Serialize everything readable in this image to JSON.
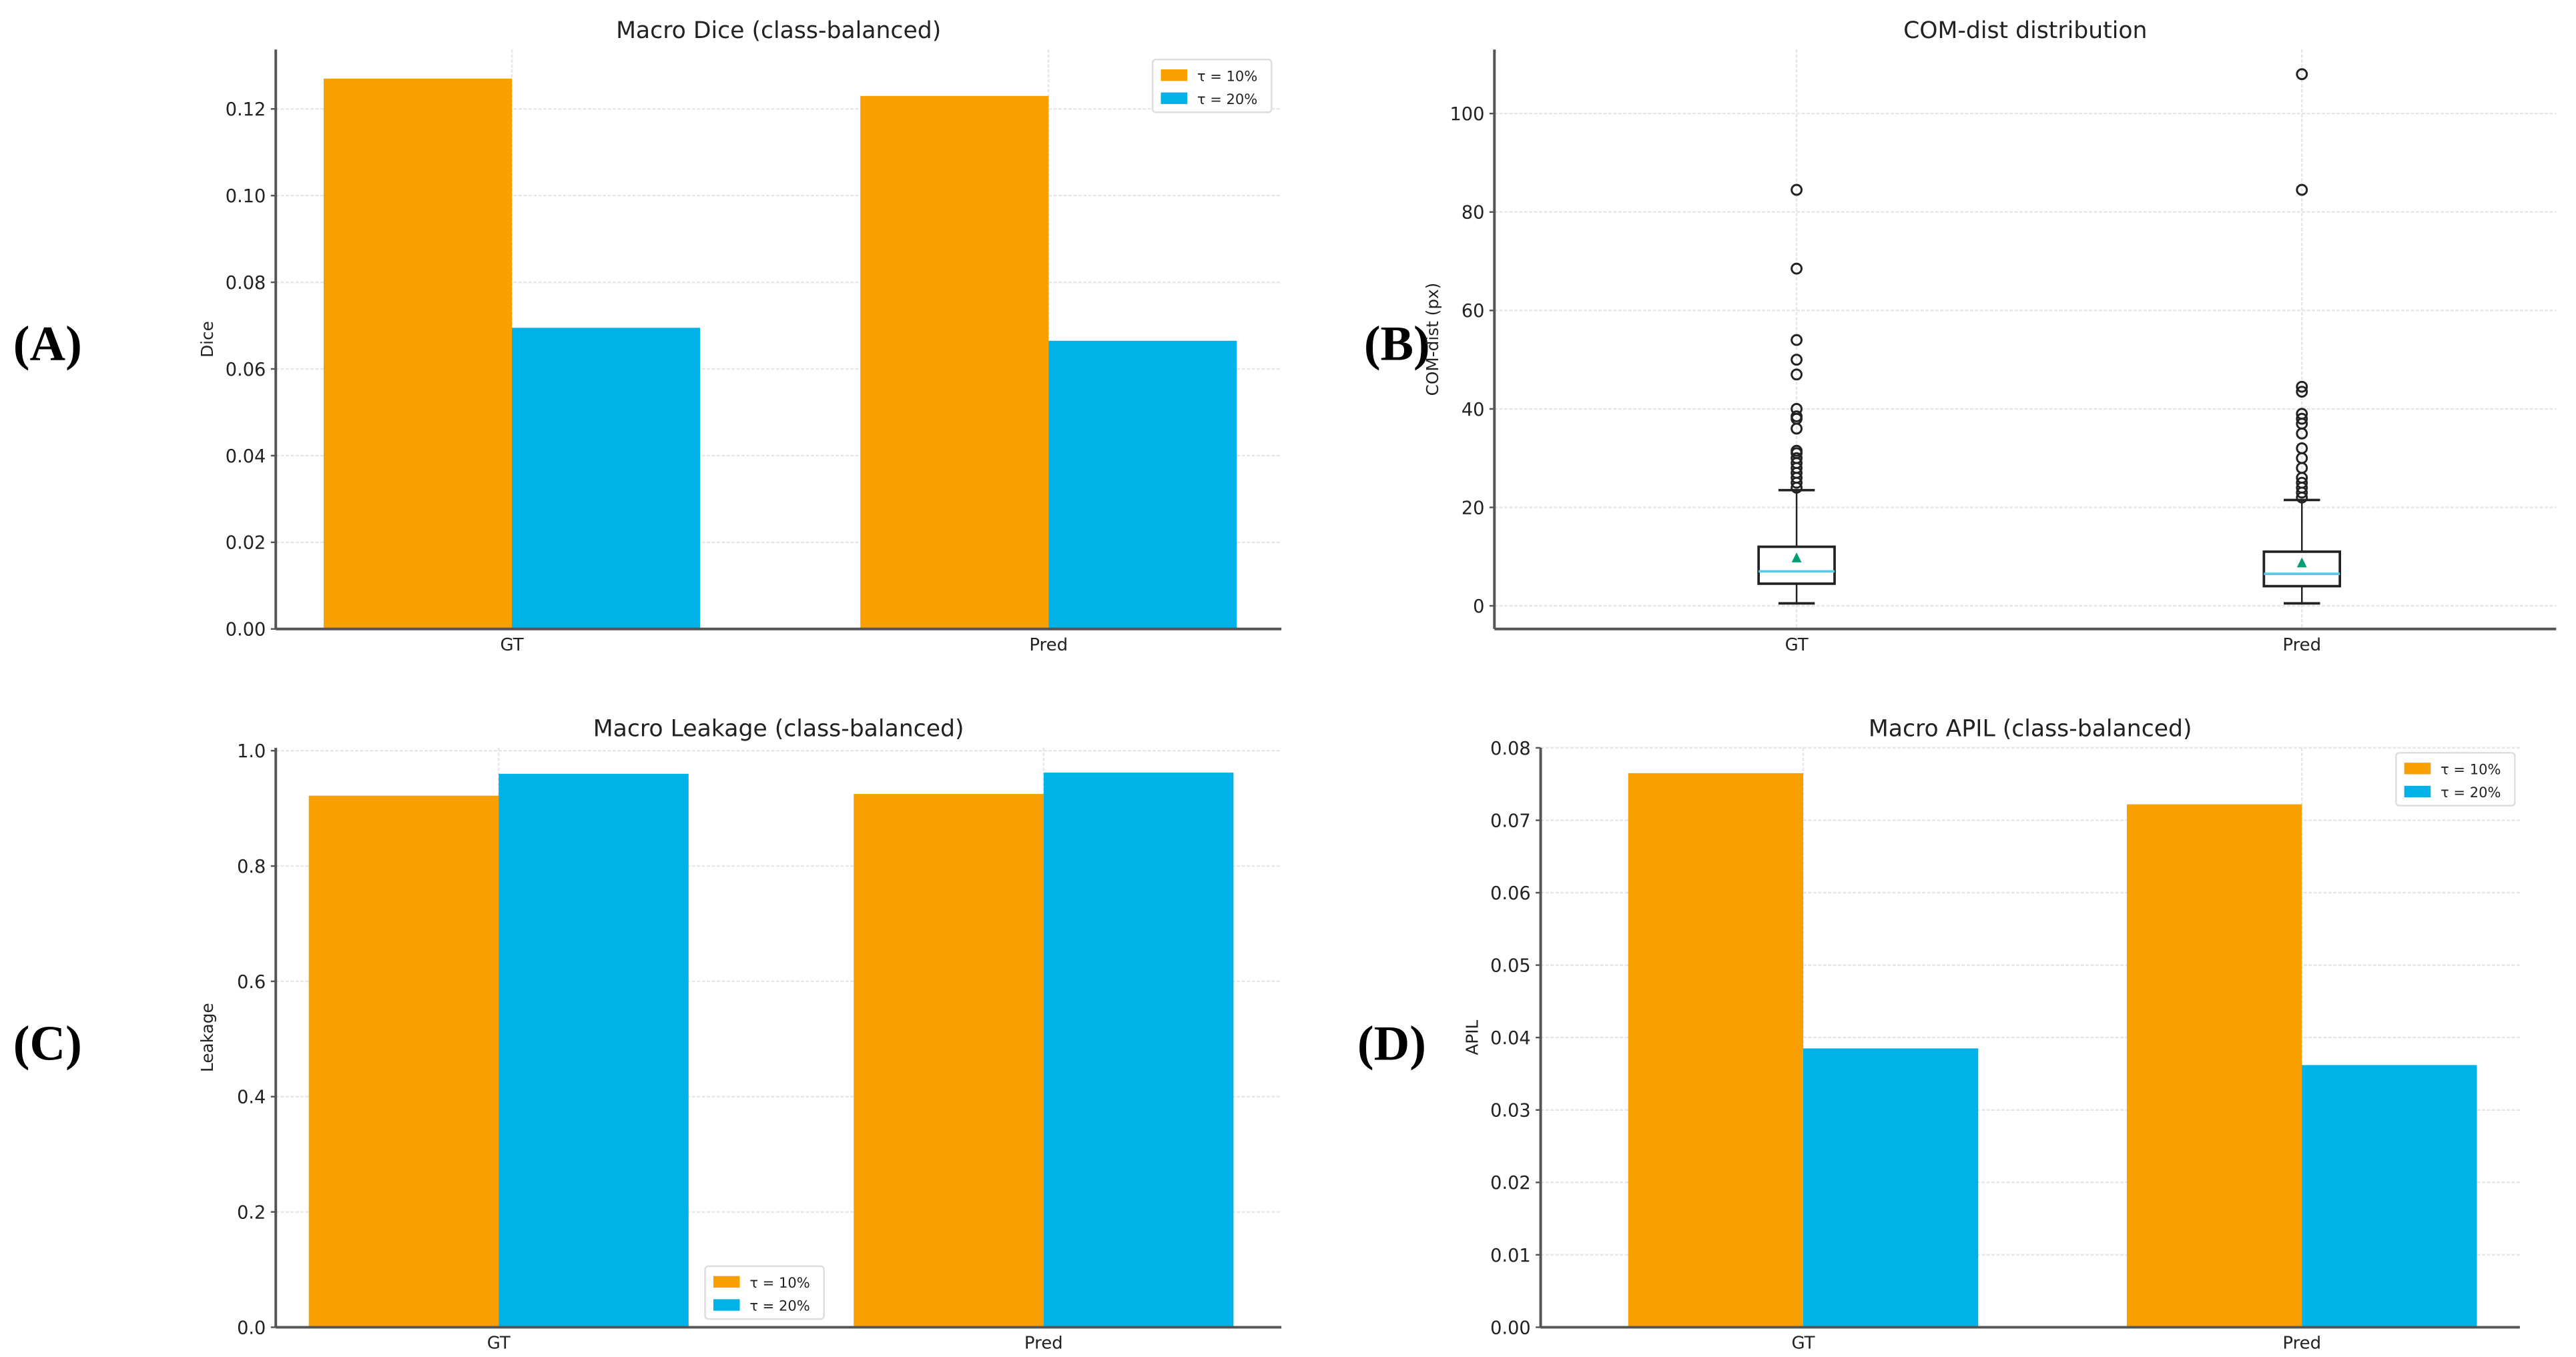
{
  "colors": {
    "tau10": "#f9a000",
    "tau20": "#00b2e8",
    "median": "#5bc8e8",
    "mean": "#009e73"
  },
  "panel_labels": [
    "(A)",
    "(B)",
    "(C)",
    "(D)"
  ],
  "chart_data": [
    {
      "type": "bar",
      "title": "Macro Dice (class-balanced)",
      "xlabel": "",
      "ylabel": "Dice",
      "categories": [
        "GT",
        "Pred"
      ],
      "series": [
        {
          "name": "τ = 10%",
          "values": [
            0.127,
            0.123
          ]
        },
        {
          "name": "τ = 20%",
          "values": [
            0.0695,
            0.0665
          ]
        }
      ],
      "ylim": [
        0,
        0.1337
      ],
      "yticks": [
        "0.00",
        "0.02",
        "0.04",
        "0.06",
        "0.08",
        "0.10",
        "0.12"
      ],
      "grid": true,
      "legend": "top-right"
    },
    {
      "type": "box",
      "title": "COM-dist distribution",
      "xlabel": "",
      "ylabel": "COM-dist (px)",
      "categories": [
        "GT",
        "Pred"
      ],
      "boxes": [
        {
          "whisker_low": 0.5,
          "q1": 4.5,
          "median": 7,
          "q3": 12,
          "whisker_high": 23.5,
          "mean": 9.5,
          "outliers": [
            24,
            25,
            26,
            27,
            28,
            29,
            30,
            31,
            31.5,
            36,
            38,
            38.5,
            40,
            47,
            50,
            54,
            68.5,
            84.5
          ]
        },
        {
          "whisker_low": 0.5,
          "q1": 4,
          "median": 6.5,
          "q3": 11,
          "whisker_high": 21.5,
          "mean": 8.5,
          "outliers": [
            22,
            23,
            24,
            25,
            26,
            28,
            30,
            32,
            35,
            37,
            38,
            39,
            43.5,
            44.5,
            84.5,
            108
          ]
        }
      ],
      "ylim": [
        -4.7,
        113
      ],
      "yticks": [
        "0",
        "20",
        "40",
        "60",
        "80",
        "100"
      ],
      "grid": true
    },
    {
      "type": "bar",
      "title": "Macro Leakage (class-balanced)",
      "xlabel": "",
      "ylabel": "Leakage",
      "categories": [
        "GT",
        "Pred"
      ],
      "series": [
        {
          "name": "τ = 10%",
          "values": [
            0.922,
            0.925
          ]
        },
        {
          "name": "τ = 20%",
          "values": [
            0.96,
            0.962
          ]
        }
      ],
      "ylim": [
        0,
        1.005
      ],
      "yticks": [
        "0.0",
        "0.2",
        "0.4",
        "0.6",
        "0.8",
        "1.0"
      ],
      "grid": true,
      "legend": "bottom-center"
    },
    {
      "type": "bar",
      "title": "Macro APIL (class-balanced)",
      "xlabel": "",
      "ylabel": "APIL",
      "categories": [
        "GT",
        "Pred"
      ],
      "series": [
        {
          "name": "τ = 10%",
          "values": [
            0.0765,
            0.0722
          ]
        },
        {
          "name": "τ = 20%",
          "values": [
            0.0385,
            0.0362
          ]
        }
      ],
      "ylim": [
        0,
        0.08
      ],
      "yticks": [
        "0.00",
        "0.01",
        "0.02",
        "0.03",
        "0.04",
        "0.05",
        "0.06",
        "0.07",
        "0.08"
      ],
      "grid": true,
      "legend": "top-right"
    }
  ]
}
